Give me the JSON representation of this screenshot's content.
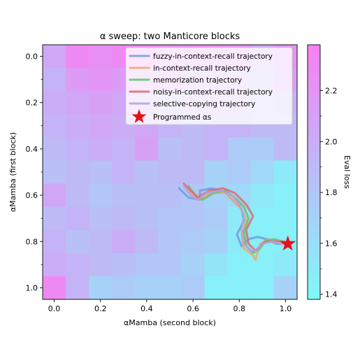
{
  "chart_data": {
    "type": "heatmap",
    "title": "α sweep: two Manticore blocks",
    "xlabel": "αMamba (second block)",
    "ylabel": "αMamba (first block)",
    "xlim": [
      -0.05,
      1.05
    ],
    "ylim": [
      1.05,
      -0.05
    ],
    "x_ticks": [
      0.0,
      0.2,
      0.4,
      0.6,
      0.8,
      1.0
    ],
    "y_ticks": [
      0.0,
      0.2,
      0.4,
      0.6,
      0.8,
      1.0
    ],
    "x_tick_labels": [
      "0.0",
      "0.2",
      "0.4",
      "0.6",
      "0.8",
      "1.0"
    ],
    "y_tick_labels": [
      "0.0",
      "0.2",
      "0.4",
      "0.6",
      "0.8",
      "1.0"
    ],
    "grid": false,
    "heatmap": {
      "x": [
        0.0,
        0.1,
        0.2,
        0.3,
        0.4,
        0.5,
        0.6,
        0.7,
        0.8,
        0.9,
        1.0
      ],
      "y": [
        0.0,
        0.1,
        0.2,
        0.3,
        0.4,
        0.5,
        0.6,
        0.7,
        0.8,
        0.9,
        1.0
      ],
      "values": [
        [
          2.05,
          2.3,
          2.25,
          2.3,
          2.3,
          2.25,
          2.28,
          2.25,
          2.22,
          2.05,
          2.2
        ],
        [
          1.95,
          2.15,
          2.2,
          2.15,
          2.15,
          2.2,
          2.05,
          2.1,
          2.05,
          1.95,
          2.1
        ],
        [
          2.0,
          2.05,
          2.1,
          2.05,
          2.0,
          1.95,
          2.0,
          2.05,
          2.0,
          1.9,
          1.95
        ],
        [
          1.95,
          2.0,
          2.05,
          2.0,
          2.05,
          1.95,
          1.9,
          1.95,
          1.95,
          1.9,
          1.9
        ],
        [
          1.9,
          1.95,
          2.0,
          1.95,
          2.1,
          1.85,
          1.9,
          1.95,
          1.75,
          1.75,
          1.9
        ],
        [
          1.85,
          1.9,
          1.85,
          1.95,
          1.85,
          1.9,
          1.9,
          1.7,
          1.75,
          1.65,
          1.5
        ],
        [
          2.05,
          1.9,
          1.8,
          1.85,
          1.85,
          1.85,
          1.8,
          1.7,
          1.65,
          1.5,
          1.45
        ],
        [
          1.9,
          1.95,
          1.85,
          1.9,
          1.85,
          1.8,
          1.8,
          1.75,
          1.5,
          1.45,
          1.45
        ],
        [
          1.95,
          1.85,
          1.9,
          2.0,
          1.9,
          1.8,
          1.75,
          1.7,
          1.5,
          1.45,
          1.45
        ],
        [
          2.0,
          1.95,
          1.9,
          1.85,
          1.8,
          1.8,
          1.7,
          1.55,
          1.45,
          1.45,
          1.5
        ],
        [
          2.3,
          1.95,
          1.7,
          1.75,
          1.7,
          1.7,
          1.75,
          1.45,
          1.45,
          1.45,
          1.7
        ]
      ]
    },
    "colorbar": {
      "label": "Eval loss",
      "min": 1.38,
      "max": 2.38,
      "ticks": [
        1.4,
        1.6,
        1.8,
        2.0,
        2.2
      ],
      "tick_labels": [
        "1.4",
        "1.6",
        "1.8",
        "2.0",
        "2.2"
      ],
      "cmap_low": "#7ff9f9",
      "cmap_high": "#f87ff4"
    },
    "series": [
      {
        "name": "fuzzy-in-context-recall trajectory",
        "color": "#6f9fd8",
        "x": [
          0.54,
          0.58,
          0.63,
          0.63,
          0.68,
          0.74,
          0.77,
          0.81,
          0.82,
          0.79,
          0.81,
          0.84,
          0.88,
          0.92,
          0.96,
          1.01
        ],
        "y": [
          0.57,
          0.61,
          0.62,
          0.58,
          0.57,
          0.59,
          0.62,
          0.66,
          0.71,
          0.77,
          0.82,
          0.79,
          0.78,
          0.79,
          0.81,
          0.81
        ]
      },
      {
        "name": "in-context-recall trajectory",
        "color": "#f2a86e",
        "x": [
          0.57,
          0.6,
          0.63,
          0.68,
          0.74,
          0.77,
          0.81,
          0.83,
          0.81,
          0.82,
          0.86,
          0.87,
          0.89,
          0.93,
          0.98,
          1.01
        ],
        "y": [
          0.56,
          0.6,
          0.62,
          0.59,
          0.59,
          0.62,
          0.66,
          0.71,
          0.77,
          0.83,
          0.86,
          0.88,
          0.81,
          0.79,
          0.81,
          0.81
        ]
      },
      {
        "name": "memorization trajectory",
        "color": "#66c26a",
        "x": [
          0.58,
          0.61,
          0.64,
          0.69,
          0.74,
          0.78,
          0.82,
          0.84,
          0.82,
          0.83,
          0.86,
          0.89,
          0.91,
          0.95,
          0.99,
          1.01
        ],
        "y": [
          0.56,
          0.6,
          0.62,
          0.59,
          0.58,
          0.61,
          0.65,
          0.7,
          0.76,
          0.82,
          0.85,
          0.83,
          0.8,
          0.79,
          0.8,
          0.81
        ]
      },
      {
        "name": "noisy-in-context-recall trajectory",
        "color": "#dd6a74",
        "x": [
          0.56,
          0.59,
          0.62,
          0.67,
          0.73,
          0.78,
          0.83,
          0.86,
          0.83,
          0.84,
          0.87,
          0.89,
          0.91,
          0.95,
          0.99,
          1.01
        ],
        "y": [
          0.55,
          0.58,
          0.61,
          0.58,
          0.57,
          0.59,
          0.64,
          0.69,
          0.75,
          0.81,
          0.84,
          0.82,
          0.8,
          0.8,
          0.8,
          0.81
        ]
      },
      {
        "name": "selective-copying trajectory",
        "color": "#b79ee0",
        "x": [
          0.56,
          0.59,
          0.62,
          0.66,
          0.72,
          0.77,
          0.8,
          0.82,
          0.81,
          0.82,
          0.85,
          0.87,
          0.9,
          0.94,
          0.98,
          1.01
        ],
        "y": [
          0.56,
          0.6,
          0.62,
          0.59,
          0.58,
          0.6,
          0.64,
          0.69,
          0.75,
          0.81,
          0.84,
          0.84,
          0.81,
          0.8,
          0.81,
          0.81
        ]
      }
    ],
    "marker": {
      "name": "Programmed αs",
      "x": 1.01,
      "y": 0.81,
      "color": "#e8101a"
    },
    "legend_position": "upper right"
  }
}
